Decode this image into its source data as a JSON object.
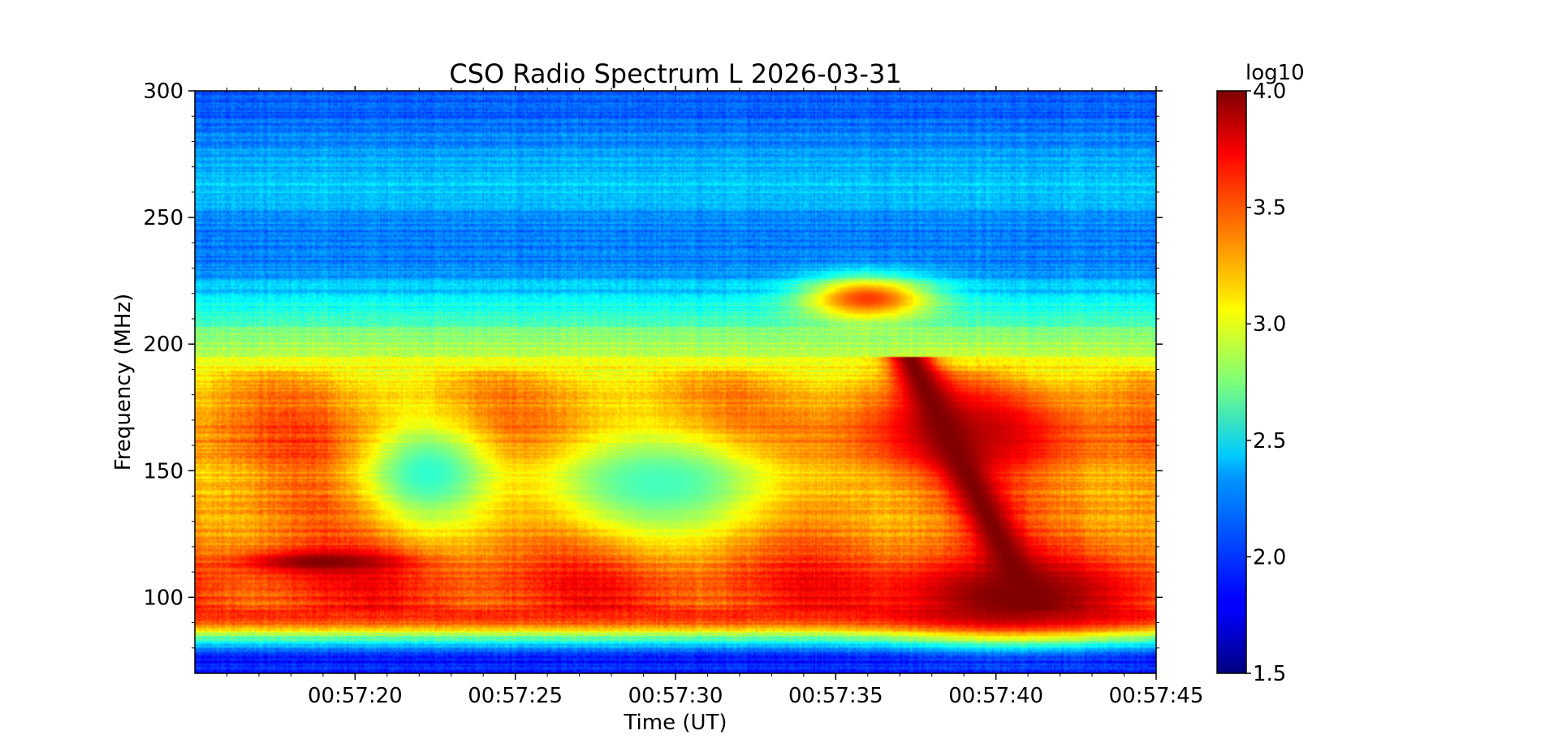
{
  "chart_data": {
    "type": "heatmap",
    "title": "CSO Radio Spectrum L 2026-03-31",
    "xlabel": "Time (UT)",
    "ylabel": "Frequency (MHz)",
    "x_range": [
      "00:57:15",
      "00:57:45"
    ],
    "x_ticks": [
      "00:57:20",
      "00:57:25",
      "00:57:30",
      "00:57:35",
      "00:57:40",
      "00:57:45"
    ],
    "y_range": [
      70,
      300
    ],
    "y_ticks": [
      100,
      150,
      200,
      250,
      300
    ],
    "colorbar": {
      "label": "log10",
      "range": [
        1.5,
        4.0
      ],
      "ticks": [
        "1.5",
        "2.0",
        "2.5",
        "3.0",
        "3.5",
        "4.0"
      ],
      "colormap": "jet"
    },
    "intensity_profile": {
      "frequency_mhz": [
        70,
        78,
        84,
        90,
        100,
        110,
        120,
        130,
        140,
        150,
        160,
        170,
        180,
        190,
        200,
        210,
        220,
        230,
        240,
        250,
        260,
        270,
        280,
        290,
        300
      ],
      "background_log10": [
        1.9,
        1.9,
        2.7,
        3.5,
        3.6,
        3.55,
        3.45,
        3.4,
        3.35,
        3.3,
        3.45,
        3.4,
        3.3,
        3.1,
        2.85,
        2.6,
        2.35,
        2.15,
        2.1,
        2.15,
        2.35,
        2.25,
        2.15,
        2.05,
        2.0
      ]
    },
    "features": [
      {
        "center_time_s": 21,
        "center_freq_mhz": 218,
        "width_s": 2.8,
        "height_mhz": 12,
        "peak_log10": 3.55
      },
      {
        "center_time_s": 24,
        "center_freq_mhz": 165,
        "width_s": 4.5,
        "height_mhz": 25,
        "peak_log10": 3.85
      },
      {
        "center_time_s": 7.3,
        "center_freq_mhz": 149,
        "width_s": 2.8,
        "height_mhz": 28,
        "peak_log10": 2.55
      },
      {
        "center_time_s": 14.5,
        "center_freq_mhz": 145,
        "width_s": 5.5,
        "height_mhz": 30,
        "peak_log10": 2.6
      },
      {
        "center_time_s": 4,
        "center_freq_mhz": 114,
        "width_s": 3.5,
        "height_mhz": 6,
        "peak_log10": 4.0
      },
      {
        "center_time_s": 25.5,
        "center_freq_mhz": 100,
        "width_s": 5,
        "height_mhz": 20,
        "peak_log10": 4.0
      }
    ],
    "grid": false,
    "legend": "none"
  }
}
